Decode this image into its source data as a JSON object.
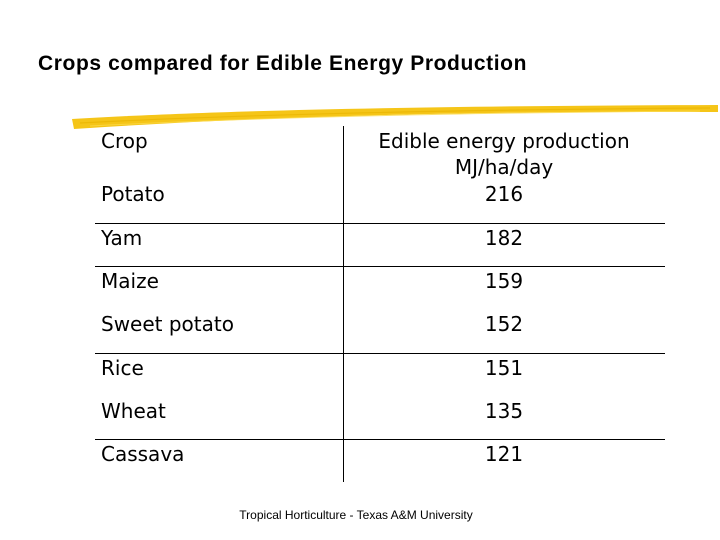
{
  "slide": {
    "title": "Crops compared for Edible Energy Production",
    "footer": "Tropical Horticulture - Texas A&M University",
    "accent_color": "#f5c518"
  },
  "table": {
    "header_crop": "Crop",
    "header_value_line1": "Edible energy production",
    "header_value_line2": "MJ/ha/day",
    "rows": [
      {
        "crop": "Potato",
        "value": "216"
      },
      {
        "crop": "Yam",
        "value": "182"
      },
      {
        "crop": "Maize",
        "value": "159"
      },
      {
        "crop": "Sweet potato",
        "value": "152"
      },
      {
        "crop": "Rice",
        "value": "151"
      },
      {
        "crop": "Wheat",
        "value": "135"
      },
      {
        "crop": "Cassava",
        "value": "121"
      }
    ]
  }
}
